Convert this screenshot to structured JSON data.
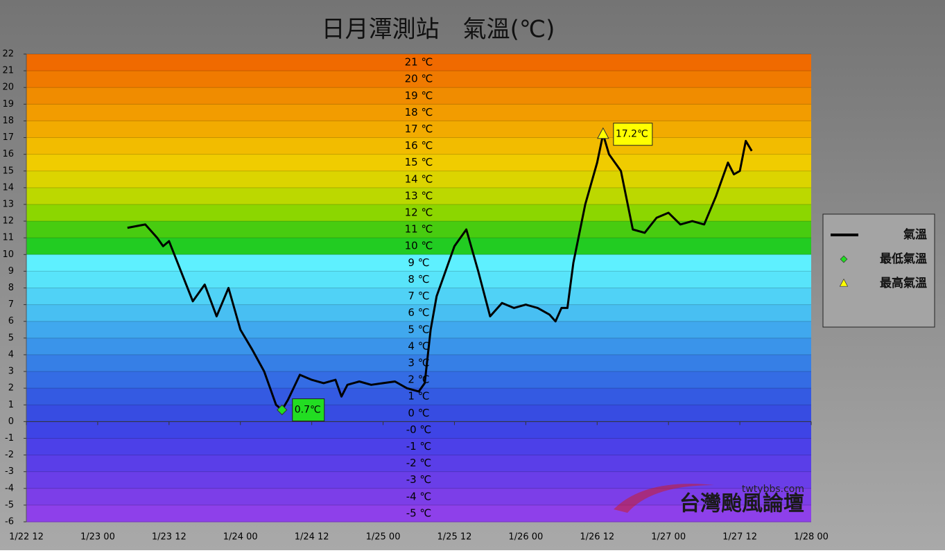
{
  "chart_data": {
    "type": "line",
    "title": "日月潭測站　氣溫(℃)",
    "xlim": [
      "1/22 12",
      "1/28 00"
    ],
    "xticks": [
      "1/22 12",
      "1/23 00",
      "1/23 12",
      "1/24 00",
      "1/24 12",
      "1/25 00",
      "1/25 12",
      "1/26 00",
      "1/26 12",
      "1/27 00",
      "1/27 12",
      "1/28 00"
    ],
    "ylim": [
      -6,
      22
    ],
    "yticks": [
      22,
      21,
      20,
      19,
      18,
      17,
      16,
      15,
      14,
      13,
      12,
      11,
      10,
      9,
      8,
      7,
      6,
      5,
      4,
      3,
      2,
      1,
      0,
      -1,
      -2,
      -3,
      -4,
      -5,
      -6
    ],
    "grid": true,
    "band_labels": [
      "21 ℃",
      "20 ℃",
      "19 ℃",
      "18 ℃",
      "17 ℃",
      "16 ℃",
      "15 ℃",
      "14 ℃",
      "13 ℃",
      "12 ℃",
      "11 ℃",
      "10 ℃",
      "9 ℃",
      "8 ℃",
      "7 ℃",
      "6 ℃",
      "5 ℃",
      "4 ℃",
      "3 ℃",
      "2 ℃",
      "1 ℃",
      "0 ℃",
      "-0 ℃",
      "-1 ℃",
      "-2 ℃",
      "-3 ℃",
      "-4 ℃",
      "-5 ℃"
    ],
    "legend": "right",
    "series": [
      {
        "name": "氣溫",
        "color": "#000000",
        "marker": "line",
        "x": [
          "1/23 05",
          "1/23 08",
          "1/23 10",
          "1/23 11",
          "1/23 12",
          "1/23 14",
          "1/23 16",
          "1/23 18",
          "1/23 20",
          "1/23 22",
          "1/24 00",
          "1/24 02",
          "1/24 04",
          "1/24 06",
          "1/24 07",
          "1/24 08",
          "1/24 10",
          "1/24 12",
          "1/24 14",
          "1/24 16",
          "1/24 17",
          "1/24 18",
          "1/24 20",
          "1/24 22",
          "1/25 00",
          "1/25 02",
          "1/25 04",
          "1/25 06",
          "1/25 07",
          "1/25 08",
          "1/25 09",
          "1/25 10",
          "1/25 12",
          "1/25 14",
          "1/25 16",
          "1/25 18",
          "1/25 20",
          "1/25 22",
          "1/26 00",
          "1/26 02",
          "1/26 04",
          "1/26 05",
          "1/26 06",
          "1/26 07",
          "1/26 08",
          "1/26 10",
          "1/26 12",
          "1/26 13",
          "1/26 14",
          "1/26 16",
          "1/26 18",
          "1/26 20",
          "1/26 22",
          "1/27 00",
          "1/27 02",
          "1/27 04",
          "1/27 06",
          "1/27 08",
          "1/27 10",
          "1/27 11",
          "1/27 12",
          "1/27 13",
          "1/27 14"
        ],
        "values": [
          11.6,
          11.8,
          11.0,
          10.5,
          10.8,
          9.0,
          7.2,
          8.2,
          6.3,
          8.0,
          5.5,
          4.3,
          3.0,
          1.0,
          0.7,
          1.3,
          2.8,
          2.5,
          2.3,
          2.5,
          1.5,
          2.2,
          2.4,
          2.2,
          2.3,
          2.4,
          2.0,
          1.8,
          2.3,
          5.5,
          7.5,
          8.5,
          10.5,
          11.5,
          9.0,
          6.3,
          7.1,
          6.8,
          7.0,
          6.8,
          6.4,
          6.0,
          6.8,
          6.8,
          9.5,
          13.0,
          15.5,
          17.2,
          16.0,
          15.0,
          11.5,
          11.3,
          12.2,
          12.5,
          11.8,
          12.0,
          11.8,
          13.5,
          15.5,
          14.8,
          15.0,
          16.8,
          16.2
        ]
      },
      {
        "name": "最低氣溫",
        "color": "#22dd22",
        "marker": "diamond",
        "x": [
          "1/24 07"
        ],
        "values": [
          0.7
        ],
        "value_labels": [
          "0.7℃"
        ]
      },
      {
        "name": "最高氣溫",
        "color": "#ffff00",
        "marker": "triangle",
        "x": [
          "1/26 13"
        ],
        "values": [
          17.2
        ],
        "value_labels": [
          "17.2℃"
        ]
      }
    ],
    "watermark": {
      "site": "twtybbs.com",
      "name": "台灣颱風論壇"
    }
  }
}
